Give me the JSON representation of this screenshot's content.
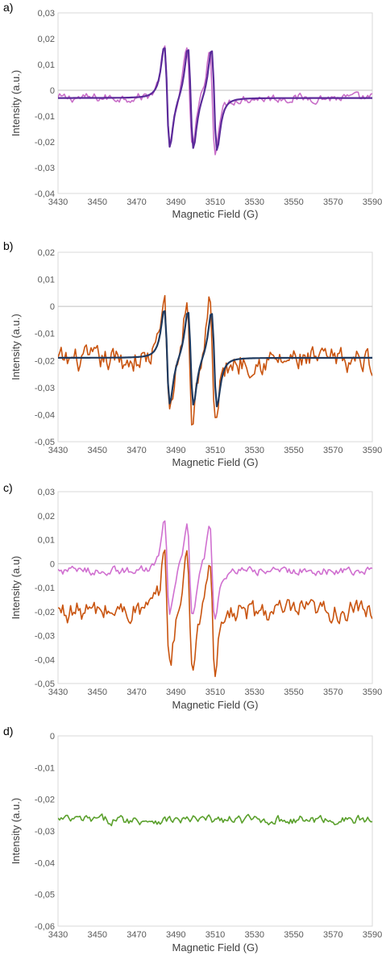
{
  "chart_data": [
    {
      "panel": "a)",
      "type": "line",
      "xlabel": "Magnetic Field (G)",
      "ylabel": "Intensity (a.u.)",
      "xlim": [
        3430,
        3590
      ],
      "ylim": [
        -0.04,
        0.03
      ],
      "x_ticks": [
        "3430",
        "3450",
        "3470",
        "3490",
        "3510",
        "3530",
        "3550",
        "3570",
        "3590"
      ],
      "y_ticks": [
        "0,03",
        "0,02",
        "0,01",
        "0",
        "-0,01",
        "-0,02",
        "-0,03",
        "-0,04"
      ],
      "zero_line": true,
      "series": [
        {
          "color": "#c86ec8",
          "kind": "noisy-experimental",
          "baseline": -0.003,
          "noise": 0.0015,
          "peaks": [
            {
              "pos": 3497,
              "max": 0.02,
              "min": -0.028
            }
          ]
        },
        {
          "color": "#5b2a9a",
          "kind": "fit",
          "baseline": -0.003,
          "triplet": {
            "centers": [
              3485.5,
              3497.5,
              3509.5
            ],
            "width": 2.5,
            "max": 0.021,
            "min": -0.026
          }
        }
      ],
      "colors": {
        "experimental": "#c86ec8",
        "fit": "#5b2a9a"
      }
    },
    {
      "panel": "b)",
      "type": "line",
      "xlabel": "Magnetic Field (G)",
      "ylabel": "Intensity (a.u.)",
      "xlim": [
        3430,
        3590
      ],
      "ylim": [
        -0.05,
        0.02
      ],
      "x_ticks": [
        "3430",
        "3450",
        "3470",
        "3490",
        "3510",
        "3530",
        "3550",
        "3570",
        "3590"
      ],
      "y_ticks": [
        "0,02",
        "0,01",
        "0",
        "-0,01",
        "-0,02",
        "-0,03",
        "-0,04",
        "-0,05"
      ],
      "zero_line": true,
      "series": [
        {
          "color": "#c9540f",
          "kind": "noisy-experimental",
          "baseline": -0.02,
          "noise": 0.004,
          "peaks": [
            {
              "pos": 3497,
              "max": 0.011,
              "min": -0.044
            }
          ]
        },
        {
          "color": "#1f3a5f",
          "kind": "fit",
          "baseline": -0.019,
          "triplet": {
            "centers": [
              3485.5,
              3497.5,
              3509.5
            ],
            "width": 2.5,
            "max": 0.002,
            "min": -0.04
          }
        }
      ],
      "colors": {
        "experimental": "#c9540f",
        "fit": "#1f3a5f"
      }
    },
    {
      "panel": "c)",
      "type": "line",
      "xlabel": "Magnetic Field (G)",
      "ylabel": "Intensity (a.u)",
      "xlim": [
        3430,
        3590
      ],
      "ylim": [
        -0.05,
        0.03
      ],
      "x_ticks": [
        "3430",
        "3450",
        "3470",
        "3490",
        "3510",
        "3530",
        "3550",
        "3570",
        "3590"
      ],
      "y_ticks": [
        "0,03",
        "0,02",
        "0,01",
        "0",
        "-0,01",
        "-0,02",
        "-0,03",
        "-0,04",
        "-0,05"
      ],
      "zero_line": true,
      "series": [
        {
          "color": "#c9540f",
          "kind": "noisy-experimental",
          "baseline": -0.02,
          "noise": 0.004,
          "peaks": [
            {
              "pos": 3497,
              "max": 0.011,
              "min": -0.044
            }
          ]
        },
        {
          "color": "#d070d0",
          "kind": "noisy-experimental",
          "baseline": -0.003,
          "noise": 0.0015,
          "peaks": [
            {
              "pos": 3497,
              "max": 0.02,
              "min": -0.028
            }
          ]
        }
      ],
      "colors": {
        "series1": "#c9540f",
        "series2": "#d070d0"
      }
    },
    {
      "panel": "d)",
      "type": "line",
      "xlabel": "Magnetic Field (G)",
      "ylabel": "Intensity (a.u.)",
      "xlim": [
        3430,
        3590
      ],
      "ylim": [
        -0.06,
        0
      ],
      "x_ticks": [
        "3430",
        "3450",
        "3470",
        "3490",
        "3510",
        "3530",
        "3550",
        "3570",
        "3590"
      ],
      "y_ticks": [
        "0",
        "-0,01",
        "-0,02",
        "-0,03",
        "-0,04",
        "-0,05",
        "-0,06"
      ],
      "zero_line": false,
      "series": [
        {
          "color": "#5aa02c",
          "kind": "noisy-flat",
          "baseline": -0.0265,
          "noise": 0.0012
        }
      ],
      "colors": {
        "series1": "#5aa02c"
      }
    }
  ]
}
